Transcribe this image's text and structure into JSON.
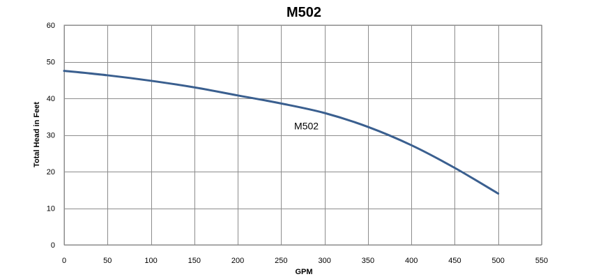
{
  "chart_data": {
    "type": "line",
    "title": "M502",
    "xlabel": "GPM",
    "ylabel": "Total Head in Feet",
    "xlim": [
      0,
      550
    ],
    "ylim": [
      0,
      60
    ],
    "x_ticks": [
      0,
      50,
      100,
      150,
      200,
      250,
      300,
      350,
      400,
      450,
      500,
      550
    ],
    "y_ticks": [
      0,
      10,
      20,
      30,
      40,
      50,
      60
    ],
    "grid": true,
    "legend": "none",
    "series_color": "#3a5f8f",
    "series": [
      {
        "name": "M502",
        "x": [
          0,
          50,
          100,
          150,
          200,
          250,
          300,
          350,
          400,
          450,
          500
        ],
        "y": [
          47.5,
          46.3,
          44.8,
          43.0,
          40.8,
          38.6,
          36.0,
          32.2,
          27.2,
          21.0,
          14.0
        ]
      }
    ]
  }
}
